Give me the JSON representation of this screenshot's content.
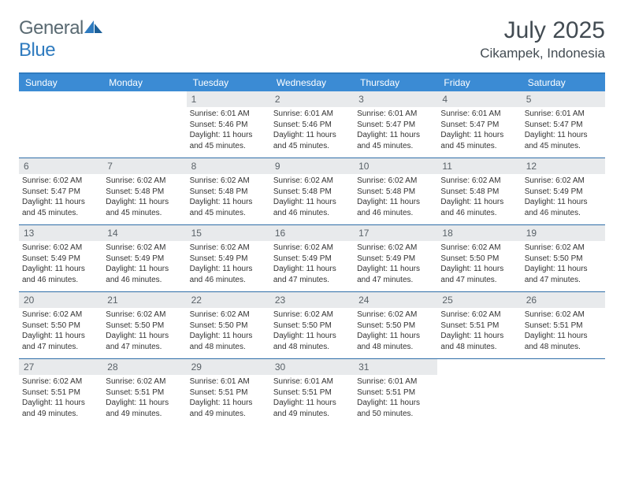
{
  "logo": {
    "text_general": "General",
    "text_blue": "Blue"
  },
  "title": "July 2025",
  "location": "Cikampek, Indonesia",
  "colors": {
    "header_bg": "#3b8bd4",
    "header_border": "#2f7bbf",
    "row_border": "#2f6ea8",
    "daynum_bg": "#e8eaec",
    "text": "#333333",
    "title_text": "#424b52",
    "logo_gray": "#5a6a72",
    "logo_blue": "#2f7bbf"
  },
  "day_names": [
    "Sunday",
    "Monday",
    "Tuesday",
    "Wednesday",
    "Thursday",
    "Friday",
    "Saturday"
  ],
  "weeks": [
    [
      {
        "day": "",
        "sunrise": "",
        "sunset": "",
        "daylight": ""
      },
      {
        "day": "",
        "sunrise": "",
        "sunset": "",
        "daylight": ""
      },
      {
        "day": "1",
        "sunrise": "Sunrise: 6:01 AM",
        "sunset": "Sunset: 5:46 PM",
        "daylight": "Daylight: 11 hours and 45 minutes."
      },
      {
        "day": "2",
        "sunrise": "Sunrise: 6:01 AM",
        "sunset": "Sunset: 5:46 PM",
        "daylight": "Daylight: 11 hours and 45 minutes."
      },
      {
        "day": "3",
        "sunrise": "Sunrise: 6:01 AM",
        "sunset": "Sunset: 5:47 PM",
        "daylight": "Daylight: 11 hours and 45 minutes."
      },
      {
        "day": "4",
        "sunrise": "Sunrise: 6:01 AM",
        "sunset": "Sunset: 5:47 PM",
        "daylight": "Daylight: 11 hours and 45 minutes."
      },
      {
        "day": "5",
        "sunrise": "Sunrise: 6:01 AM",
        "sunset": "Sunset: 5:47 PM",
        "daylight": "Daylight: 11 hours and 45 minutes."
      }
    ],
    [
      {
        "day": "6",
        "sunrise": "Sunrise: 6:02 AM",
        "sunset": "Sunset: 5:47 PM",
        "daylight": "Daylight: 11 hours and 45 minutes."
      },
      {
        "day": "7",
        "sunrise": "Sunrise: 6:02 AM",
        "sunset": "Sunset: 5:48 PM",
        "daylight": "Daylight: 11 hours and 45 minutes."
      },
      {
        "day": "8",
        "sunrise": "Sunrise: 6:02 AM",
        "sunset": "Sunset: 5:48 PM",
        "daylight": "Daylight: 11 hours and 45 minutes."
      },
      {
        "day": "9",
        "sunrise": "Sunrise: 6:02 AM",
        "sunset": "Sunset: 5:48 PM",
        "daylight": "Daylight: 11 hours and 46 minutes."
      },
      {
        "day": "10",
        "sunrise": "Sunrise: 6:02 AM",
        "sunset": "Sunset: 5:48 PM",
        "daylight": "Daylight: 11 hours and 46 minutes."
      },
      {
        "day": "11",
        "sunrise": "Sunrise: 6:02 AM",
        "sunset": "Sunset: 5:48 PM",
        "daylight": "Daylight: 11 hours and 46 minutes."
      },
      {
        "day": "12",
        "sunrise": "Sunrise: 6:02 AM",
        "sunset": "Sunset: 5:49 PM",
        "daylight": "Daylight: 11 hours and 46 minutes."
      }
    ],
    [
      {
        "day": "13",
        "sunrise": "Sunrise: 6:02 AM",
        "sunset": "Sunset: 5:49 PM",
        "daylight": "Daylight: 11 hours and 46 minutes."
      },
      {
        "day": "14",
        "sunrise": "Sunrise: 6:02 AM",
        "sunset": "Sunset: 5:49 PM",
        "daylight": "Daylight: 11 hours and 46 minutes."
      },
      {
        "day": "15",
        "sunrise": "Sunrise: 6:02 AM",
        "sunset": "Sunset: 5:49 PM",
        "daylight": "Daylight: 11 hours and 46 minutes."
      },
      {
        "day": "16",
        "sunrise": "Sunrise: 6:02 AM",
        "sunset": "Sunset: 5:49 PM",
        "daylight": "Daylight: 11 hours and 47 minutes."
      },
      {
        "day": "17",
        "sunrise": "Sunrise: 6:02 AM",
        "sunset": "Sunset: 5:49 PM",
        "daylight": "Daylight: 11 hours and 47 minutes."
      },
      {
        "day": "18",
        "sunrise": "Sunrise: 6:02 AM",
        "sunset": "Sunset: 5:50 PM",
        "daylight": "Daylight: 11 hours and 47 minutes."
      },
      {
        "day": "19",
        "sunrise": "Sunrise: 6:02 AM",
        "sunset": "Sunset: 5:50 PM",
        "daylight": "Daylight: 11 hours and 47 minutes."
      }
    ],
    [
      {
        "day": "20",
        "sunrise": "Sunrise: 6:02 AM",
        "sunset": "Sunset: 5:50 PM",
        "daylight": "Daylight: 11 hours and 47 minutes."
      },
      {
        "day": "21",
        "sunrise": "Sunrise: 6:02 AM",
        "sunset": "Sunset: 5:50 PM",
        "daylight": "Daylight: 11 hours and 47 minutes."
      },
      {
        "day": "22",
        "sunrise": "Sunrise: 6:02 AM",
        "sunset": "Sunset: 5:50 PM",
        "daylight": "Daylight: 11 hours and 48 minutes."
      },
      {
        "day": "23",
        "sunrise": "Sunrise: 6:02 AM",
        "sunset": "Sunset: 5:50 PM",
        "daylight": "Daylight: 11 hours and 48 minutes."
      },
      {
        "day": "24",
        "sunrise": "Sunrise: 6:02 AM",
        "sunset": "Sunset: 5:50 PM",
        "daylight": "Daylight: 11 hours and 48 minutes."
      },
      {
        "day": "25",
        "sunrise": "Sunrise: 6:02 AM",
        "sunset": "Sunset: 5:51 PM",
        "daylight": "Daylight: 11 hours and 48 minutes."
      },
      {
        "day": "26",
        "sunrise": "Sunrise: 6:02 AM",
        "sunset": "Sunset: 5:51 PM",
        "daylight": "Daylight: 11 hours and 48 minutes."
      }
    ],
    [
      {
        "day": "27",
        "sunrise": "Sunrise: 6:02 AM",
        "sunset": "Sunset: 5:51 PM",
        "daylight": "Daylight: 11 hours and 49 minutes."
      },
      {
        "day": "28",
        "sunrise": "Sunrise: 6:02 AM",
        "sunset": "Sunset: 5:51 PM",
        "daylight": "Daylight: 11 hours and 49 minutes."
      },
      {
        "day": "29",
        "sunrise": "Sunrise: 6:01 AM",
        "sunset": "Sunset: 5:51 PM",
        "daylight": "Daylight: 11 hours and 49 minutes."
      },
      {
        "day": "30",
        "sunrise": "Sunrise: 6:01 AM",
        "sunset": "Sunset: 5:51 PM",
        "daylight": "Daylight: 11 hours and 49 minutes."
      },
      {
        "day": "31",
        "sunrise": "Sunrise: 6:01 AM",
        "sunset": "Sunset: 5:51 PM",
        "daylight": "Daylight: 11 hours and 50 minutes."
      },
      {
        "day": "",
        "sunrise": "",
        "sunset": "",
        "daylight": ""
      },
      {
        "day": "",
        "sunrise": "",
        "sunset": "",
        "daylight": ""
      }
    ]
  ]
}
